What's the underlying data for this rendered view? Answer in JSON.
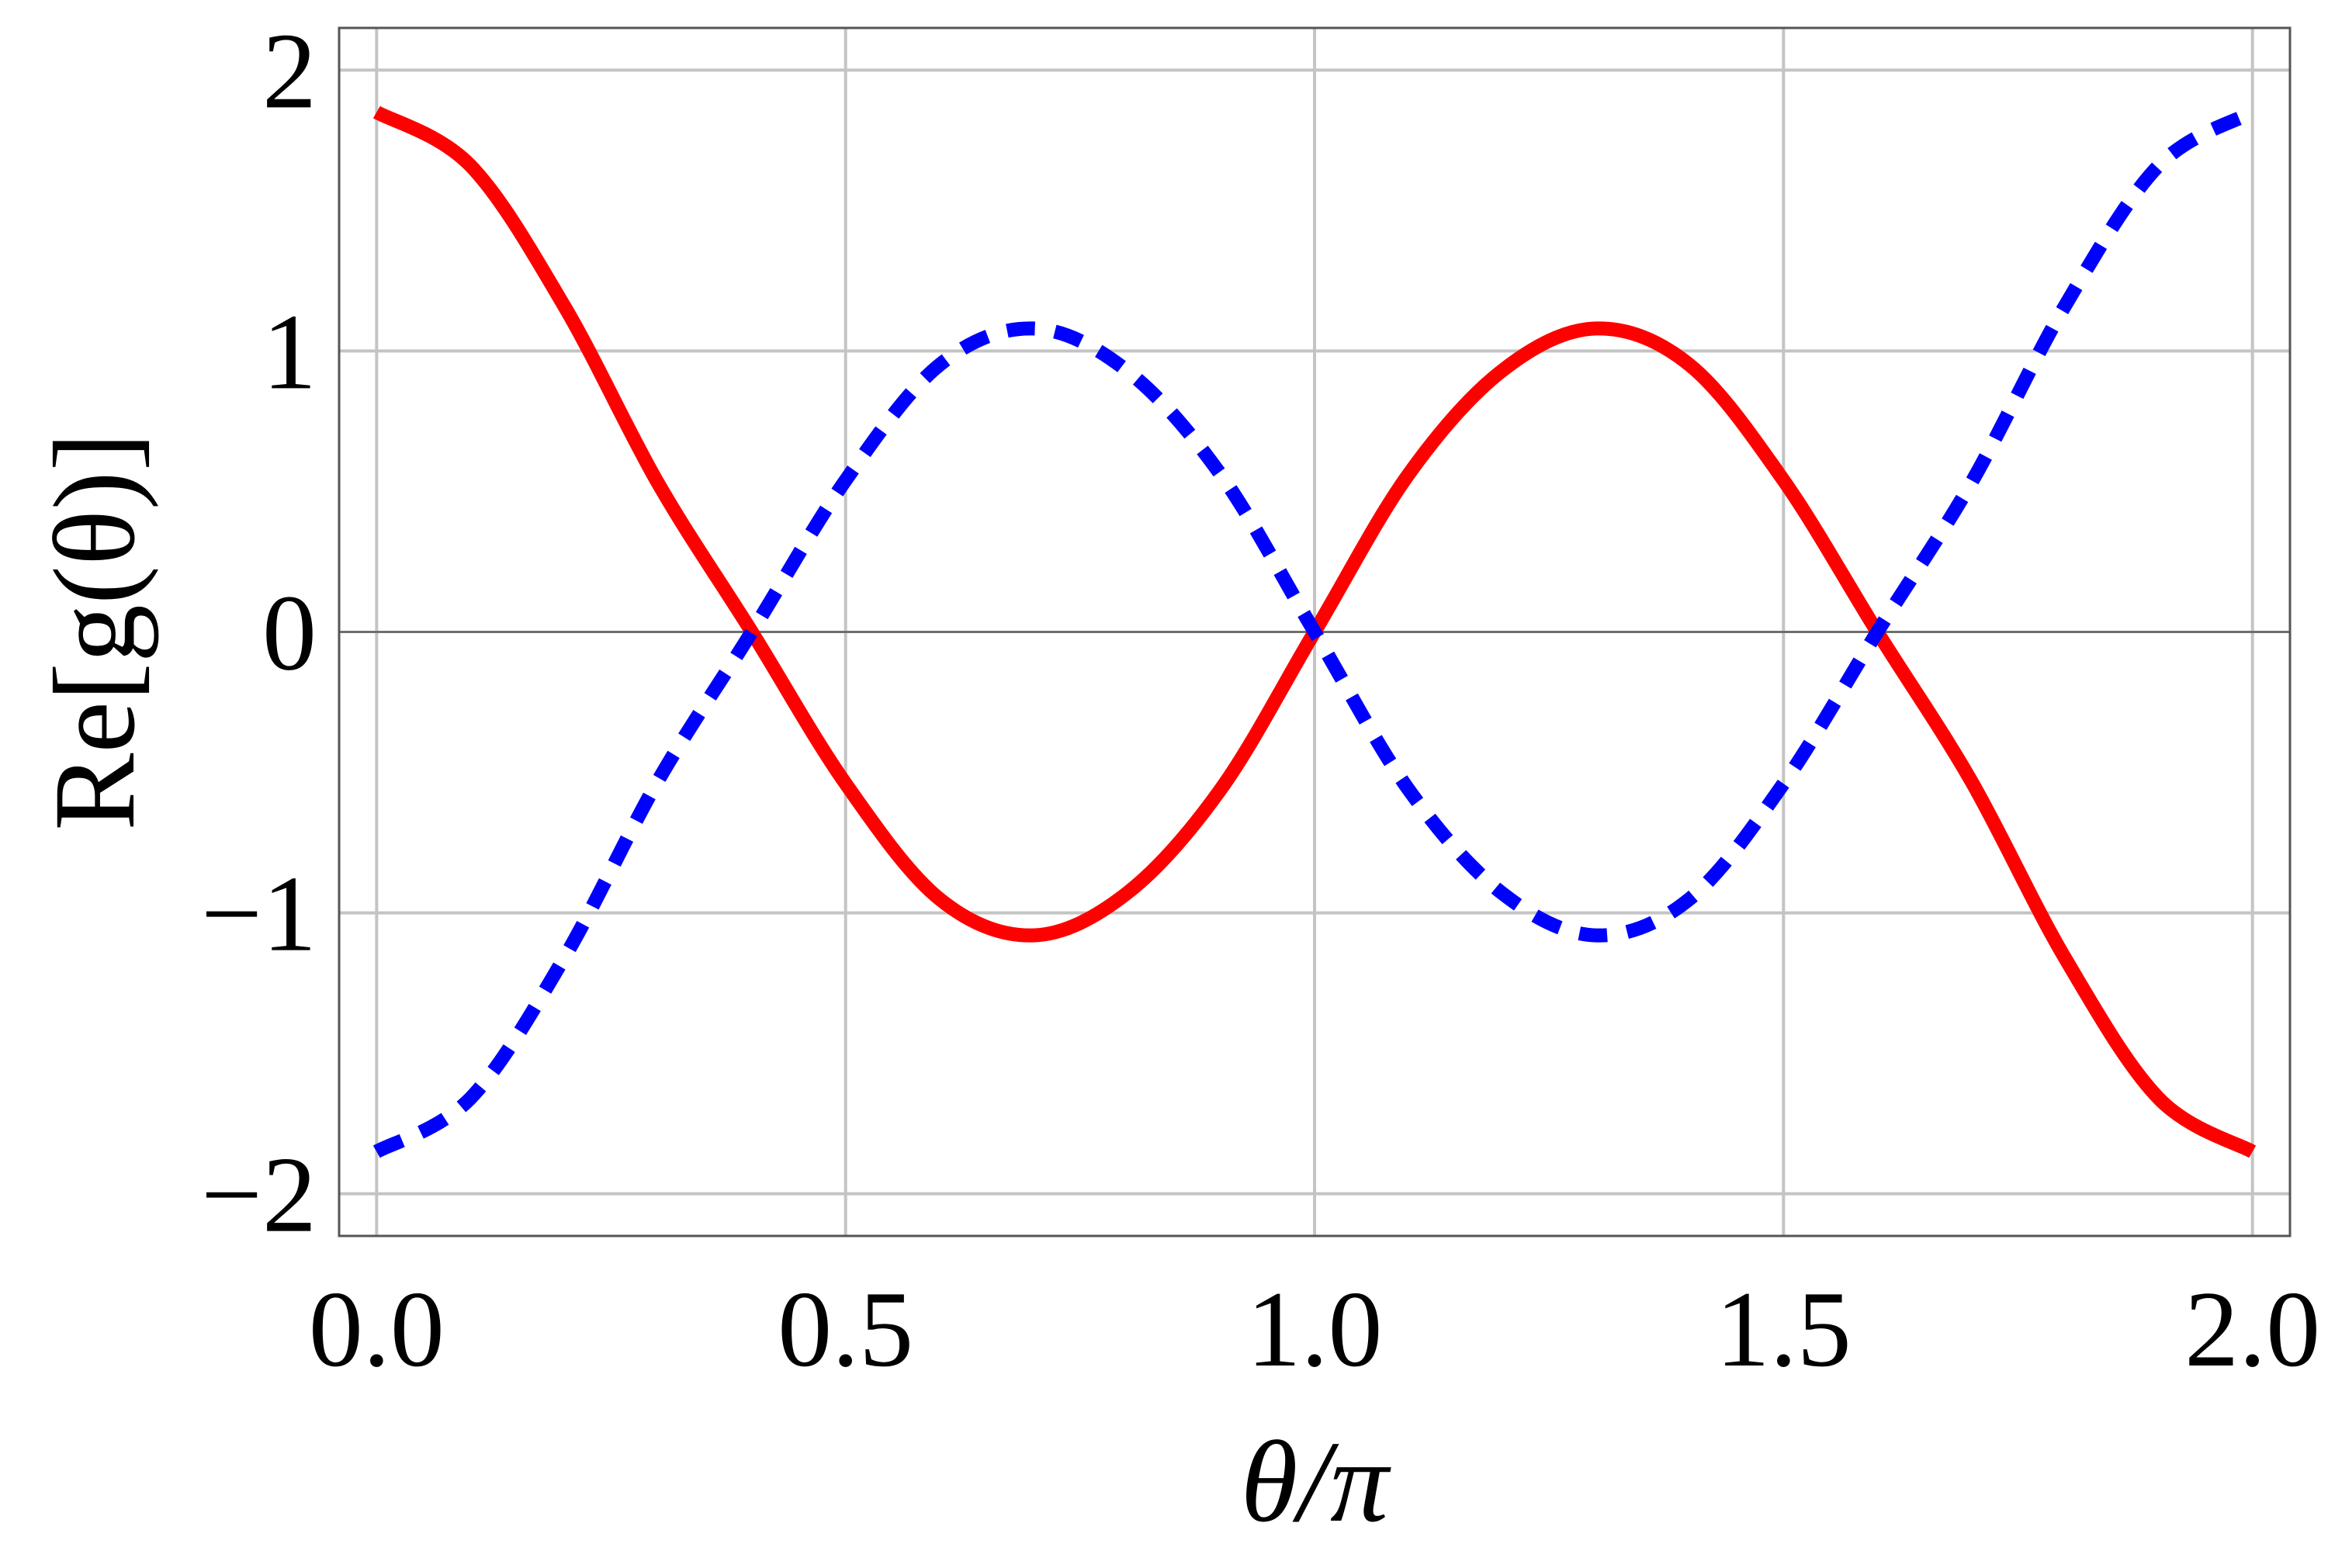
{
  "chart_data": {
    "type": "line",
    "xlabel": "θ/π",
    "ylabel": "Re[g(θ)]",
    "xlim": [
      -0.04,
      2.04
    ],
    "ylim": [
      -2.15,
      2.15
    ],
    "xticks": [
      0.0,
      0.5,
      1.0,
      1.5,
      2.0
    ],
    "xtick_labels": [
      "0.0",
      "0.5",
      "1.0",
      "1.5",
      "2.0"
    ],
    "yticks": [
      -2,
      -1,
      0,
      1,
      2
    ],
    "ytick_labels": [
      "−2",
      "−1",
      "0",
      "1",
      "2"
    ],
    "grid": true,
    "x": [
      0.0,
      0.1,
      0.2,
      0.3,
      0.4,
      0.5,
      0.6,
      0.7,
      0.8,
      0.9,
      1.0,
      1.1,
      1.2,
      1.3,
      1.4,
      1.5,
      1.6,
      1.7,
      1.8,
      1.9,
      2.0
    ],
    "series": [
      {
        "color": "#ff0000",
        "style": "solid",
        "values": [
          1.85,
          1.66,
          1.16,
          0.53,
          0.0,
          -0.54,
          -0.95,
          -1.08,
          -0.93,
          -0.56,
          0.0,
          0.56,
          0.93,
          1.08,
          0.95,
          0.54,
          0.0,
          -0.53,
          -1.16,
          -1.66,
          -1.85
        ]
      },
      {
        "color": "#0000ff",
        "style": "dashed",
        "values": [
          -1.85,
          -1.66,
          -1.16,
          -0.53,
          0.0,
          0.54,
          0.95,
          1.08,
          0.93,
          0.56,
          0.0,
          -0.56,
          -0.93,
          -1.08,
          -0.95,
          -0.54,
          0.0,
          0.53,
          1.16,
          1.66,
          1.85
        ]
      }
    ]
  }
}
